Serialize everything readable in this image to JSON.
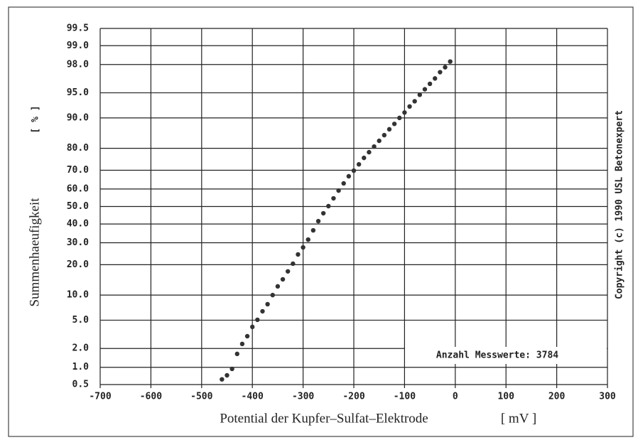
{
  "chart_data": {
    "type": "scatter",
    "y_label": "Summenhaeufigkeit",
    "y_unit": "[ % ]",
    "x_label": "Potential der Kupfer–Sulfat–Elektrode",
    "x_unit": "[ mV ]",
    "annotation": "Anzahl Messwerte: 3784",
    "copyright": "Copyright (c) 1990 USL Betonexpert",
    "yscale": "probability",
    "grid": true,
    "color": "#333333",
    "xlim": [
      -700,
      300
    ],
    "xticks": [
      -700,
      -600,
      -500,
      -400,
      -300,
      -200,
      -100,
      0,
      100,
      200,
      300
    ],
    "ylim": [
      0.5,
      99.5
    ],
    "yticks": [
      0.5,
      {
        "value": 1,
        "label": "1.0"
      },
      {
        "value": 2,
        "label": "2.0"
      },
      {
        "value": 5,
        "label": "5.0"
      },
      {
        "value": 10,
        "label": "10.0"
      },
      {
        "value": 20,
        "label": "20.0"
      },
      {
        "value": 30,
        "label": "30.0"
      },
      {
        "value": 40,
        "label": "40.0"
      },
      {
        "value": 50,
        "label": "50.0"
      },
      {
        "value": 60,
        "label": "60.0"
      },
      {
        "value": 70,
        "label": "70.0"
      },
      {
        "value": 80,
        "label": "80.0"
      },
      {
        "value": 90,
        "label": "90.0"
      },
      {
        "value": 95,
        "label": "95.0"
      },
      {
        "value": 98,
        "label": "98.0"
      },
      {
        "value": 99,
        "label": "99.0"
      },
      99.5
    ],
    "x": [
      -460,
      -450,
      -440,
      -430,
      -420,
      -410,
      -400,
      -390,
      -380,
      -370,
      -360,
      -350,
      -340,
      -330,
      -320,
      -310,
      -300,
      -290,
      -280,
      -270,
      -260,
      -250,
      -240,
      -230,
      -220,
      -210,
      -200,
      -190,
      -180,
      -170,
      -160,
      -150,
      -140,
      -130,
      -120,
      -110,
      -100,
      -90,
      -80,
      -70,
      -60,
      -50,
      -40,
      -30,
      -20,
      -10
    ],
    "values": [
      0.62,
      0.73,
      0.94,
      1.65,
      2.34,
      3.03,
      4.08,
      5.06,
      6.48,
      7.88,
      10.0,
      12.4,
      14.6,
      17.4,
      20.4,
      24.4,
      27.7,
      31.6,
      36.5,
      41.6,
      46.1,
      50.2,
      54.7,
      59.1,
      63.1,
      66.9,
      69.8,
      72.9,
      75.9,
      78.4,
      80.7,
      82.9,
      84.9,
      86.8,
      88.4,
      90.0,
      91.3,
      92.6,
      93.6,
      94.7,
      95.5,
      96.2,
      96.8,
      97.4,
      97.8,
      98.2
    ]
  }
}
